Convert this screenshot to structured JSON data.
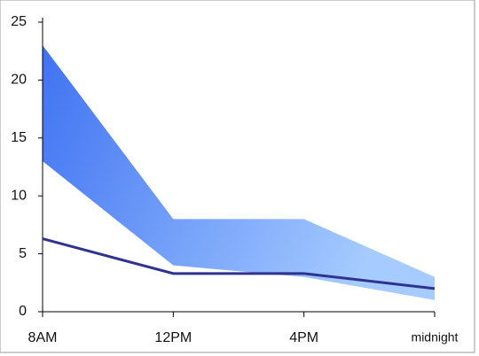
{
  "chart_data": {
    "type": "line",
    "categories": [
      "8AM",
      "12PM",
      "4PM",
      "midnight"
    ],
    "band": {
      "upper": [
        23,
        8,
        8,
        3
      ],
      "lower": [
        13,
        4,
        3,
        1
      ],
      "colors": [
        "#3f72f2",
        "#a6ccff"
      ]
    },
    "series": [
      {
        "color": "#2f3390",
        "values": [
          6.3,
          3.3,
          3.3,
          2
        ]
      }
    ],
    "ylim": [
      0,
      25
    ],
    "yticks": [
      0,
      5,
      10,
      15,
      20,
      25
    ]
  }
}
